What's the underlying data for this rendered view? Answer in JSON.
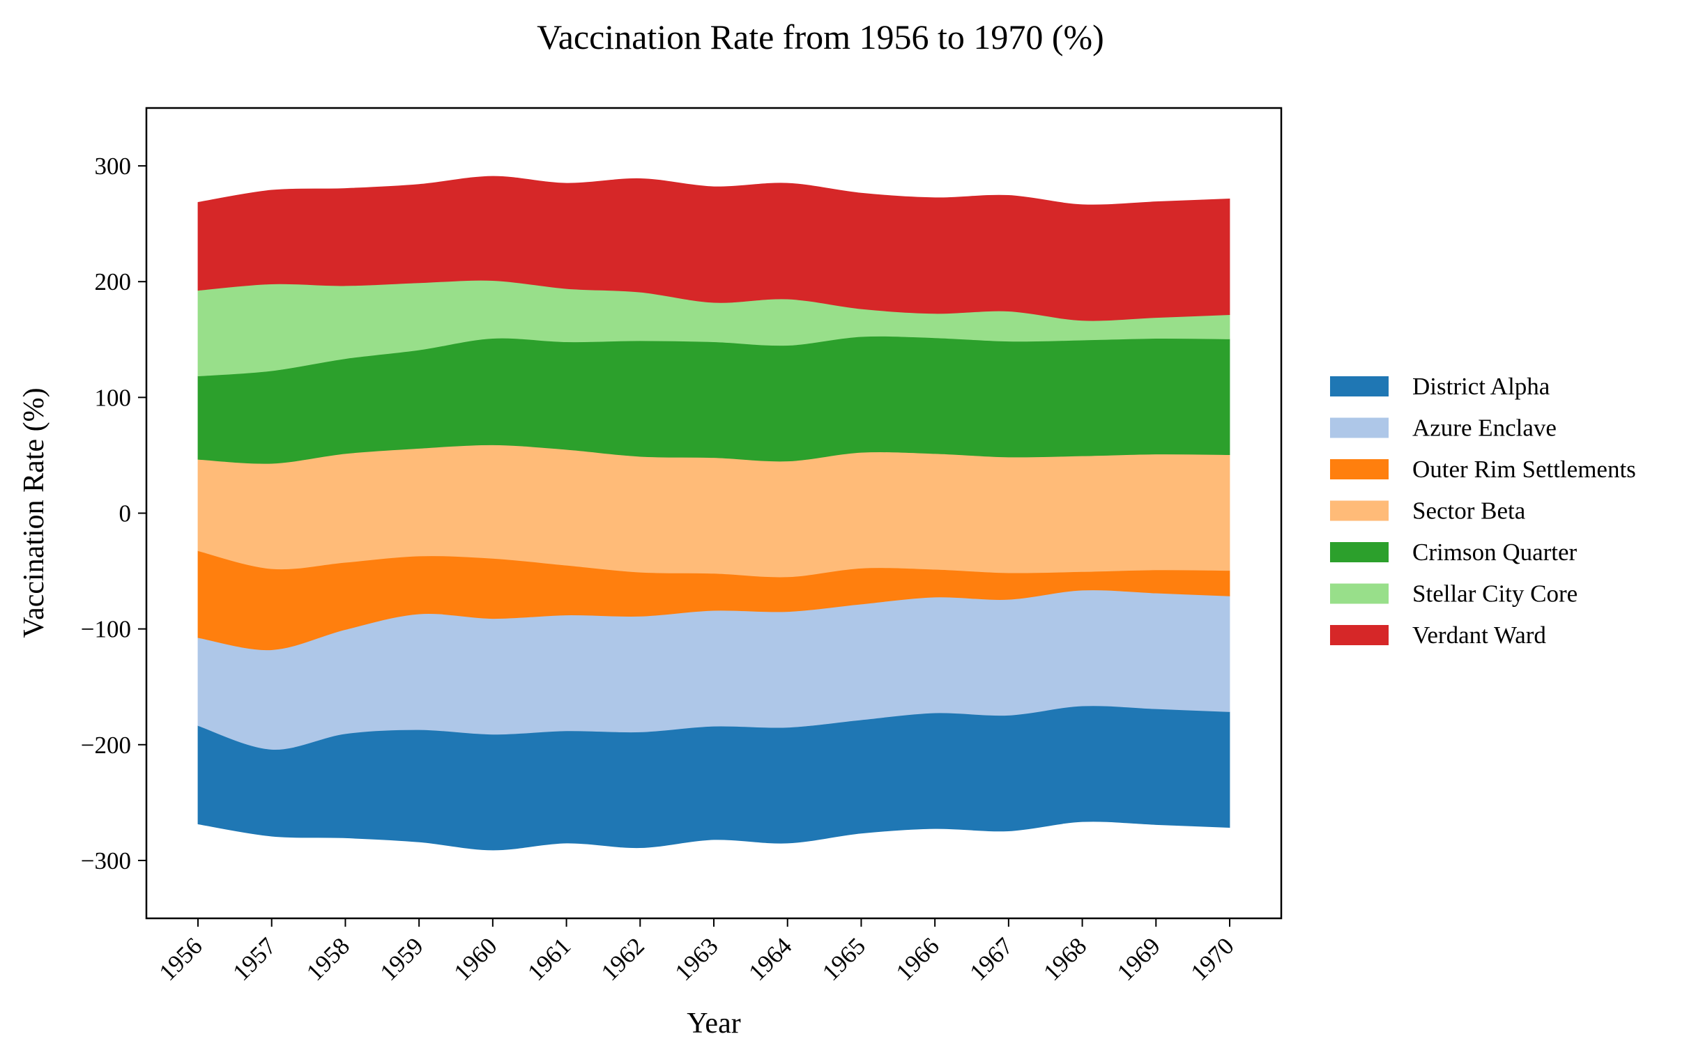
{
  "chart_data": {
    "type": "area",
    "subtype": "streamgraph",
    "title": "Vaccination Rate from 1956 to 1970 (%)",
    "xlabel": "Year",
    "ylabel": "Vaccination Rate (%)",
    "x": [
      1956,
      1957,
      1958,
      1959,
      1960,
      1961,
      1962,
      1963,
      1964,
      1965,
      1966,
      1967,
      1968,
      1969,
      1970
    ],
    "x_tick_labels": [
      "1956",
      "1957",
      "1958",
      "1959",
      "1960",
      "1961",
      "1962",
      "1963",
      "1964",
      "1965",
      "1966",
      "1967",
      "1968",
      "1969",
      "1970"
    ],
    "ylim": [
      -350,
      350
    ],
    "y_ticks": [
      -300,
      -200,
      -100,
      0,
      100,
      200,
      300
    ],
    "y_tick_labels": [
      "−300",
      "−200",
      "−100",
      "0",
      "100",
      "200",
      "300"
    ],
    "grid": false,
    "legend_position": "right",
    "series": [
      {
        "name": "District Alpha",
        "color": "#1f77b4",
        "values": [
          85,
          75,
          90,
          97,
          100,
          97,
          100,
          98,
          100,
          98,
          100,
          100,
          100,
          100,
          100
        ]
      },
      {
        "name": "Azure Enclave",
        "color": "#aec7e8",
        "values": [
          76,
          86,
          90,
          100,
          100,
          100,
          100,
          100,
          100,
          100,
          100,
          100,
          100,
          100,
          100
        ]
      },
      {
        "name": "Outer Rim Settlements",
        "color": "#ff7f0e",
        "values": [
          75,
          70,
          58,
          50,
          52,
          43,
          38,
          32,
          30,
          31,
          24,
          23,
          16,
          20,
          22
        ]
      },
      {
        "name": "Sector Beta",
        "color": "#ffbb78",
        "values": [
          79,
          91,
          94,
          93,
          98,
          100,
          100,
          100,
          100,
          100,
          100,
          100,
          100,
          100,
          100
        ]
      },
      {
        "name": "Crimson Quarter",
        "color": "#2ca02c",
        "values": [
          72,
          80,
          82,
          85,
          92,
          93,
          100,
          100,
          100,
          100,
          100,
          100,
          100,
          100,
          100
        ]
      },
      {
        "name": "Stellar City Core",
        "color": "#98df8a",
        "values": [
          74,
          75,
          63,
          58,
          50,
          46,
          42,
          34,
          40,
          24,
          21,
          26,
          17,
          18,
          21
        ]
      },
      {
        "name": "Verdant Ward",
        "color": "#d62728",
        "values": [
          76,
          81,
          84,
          85,
          90,
          91,
          98,
          100,
          100,
          100,
          100,
          100,
          100,
          100,
          100
        ]
      }
    ]
  }
}
